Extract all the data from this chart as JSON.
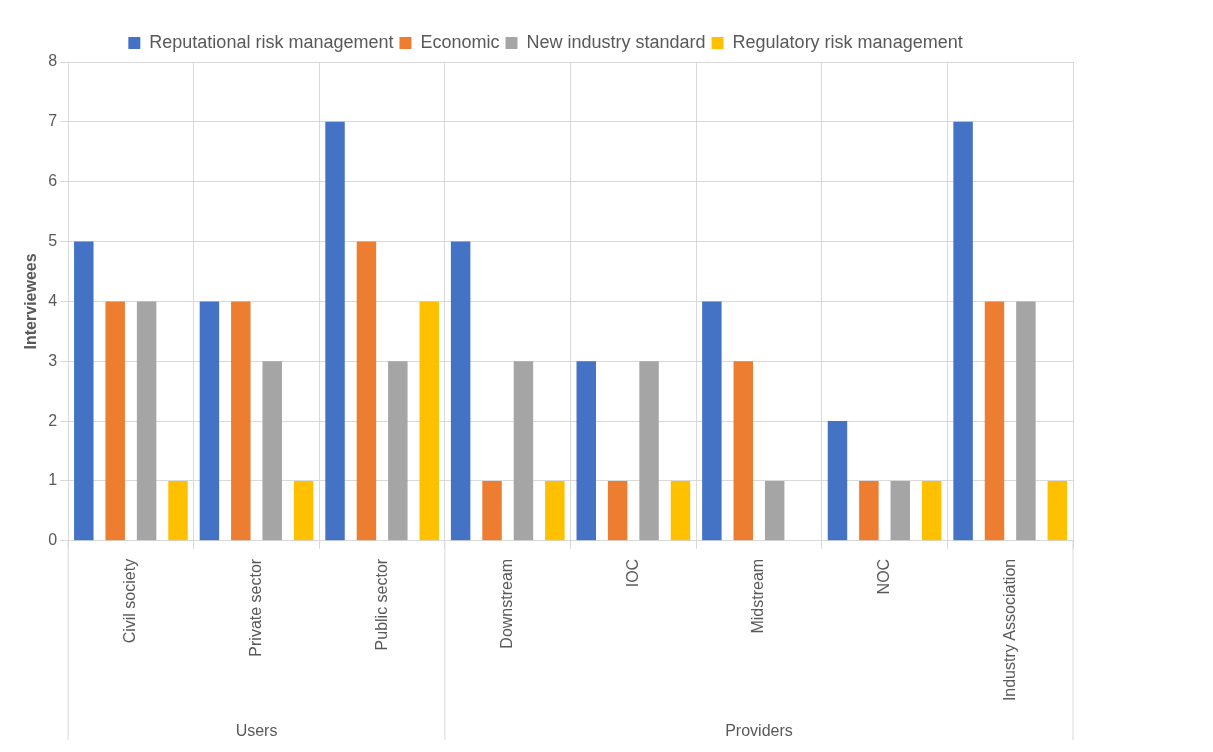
{
  "chart_data": {
    "type": "bar",
    "ylabel": "Interviewees",
    "categories": [
      "Civil society",
      "Private sector",
      "Public sector",
      "Downstream",
      "IOC",
      "Midstream",
      "NOC",
      "Industry Association"
    ],
    "series": [
      {
        "name": "Reputational risk management",
        "color": "#4472c4",
        "values": [
          5,
          4,
          7,
          5,
          3,
          4,
          2,
          7
        ]
      },
      {
        "name": "Economic",
        "color": "#ed7d31",
        "values": [
          4,
          4,
          5,
          1,
          1,
          3,
          1,
          4
        ]
      },
      {
        "name": "New industry standard",
        "color": "#a5a5a5",
        "values": [
          4,
          3,
          3,
          3,
          3,
          1,
          1,
          4
        ]
      },
      {
        "name": "Regulatory risk management",
        "color": "#ffc000",
        "values": [
          1,
          1,
          4,
          1,
          1,
          0,
          1,
          1
        ]
      }
    ],
    "ylim": [
      0,
      8
    ],
    "yticks": [
      0,
      1,
      2,
      3,
      4,
      5,
      6,
      7,
      8
    ],
    "grid": true,
    "legend": "top",
    "annotations": [
      "Users",
      "Providers"
    ]
  }
}
